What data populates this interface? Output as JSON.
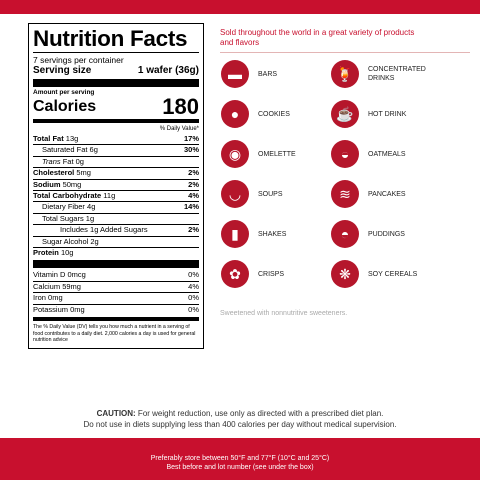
{
  "nutrition": {
    "title": "Nutrition Facts",
    "servings": "7 servings per container",
    "serving_size_label": "Serving size",
    "serving_size_value": "1 wafer (36g)",
    "amount_per_serving": "Amount per serving",
    "calories_label": "Calories",
    "calories_value": "180",
    "dv_header": "% Daily Value*",
    "rows": [
      {
        "name": "Total Fat",
        "amount": "13g",
        "dv": "17%",
        "bold": true,
        "indent": 0
      },
      {
        "name": "Saturated Fat",
        "amount": "6g",
        "dv": "30%",
        "bold": false,
        "indent": 1
      },
      {
        "name": "Trans",
        "amount": "Fat 0g",
        "dv": "",
        "bold": false,
        "indent": 1,
        "italic": true
      },
      {
        "name": "Cholesterol",
        "amount": "5mg",
        "dv": "2%",
        "bold": true,
        "indent": 0
      },
      {
        "name": "Sodium",
        "amount": "50mg",
        "dv": "2%",
        "bold": true,
        "indent": 0
      },
      {
        "name": "Total Carbohydrate",
        "amount": "11g",
        "dv": "4%",
        "bold": true,
        "indent": 0
      },
      {
        "name": "Dietary Fiber",
        "amount": "4g",
        "dv": "14%",
        "bold": false,
        "indent": 1
      },
      {
        "name": "Total Sugars",
        "amount": "1g",
        "dv": "",
        "bold": false,
        "indent": 1
      },
      {
        "name": "Includes 1g Added Sugars",
        "amount": "",
        "dv": "2%",
        "bold": false,
        "indent": 3
      },
      {
        "name": "Sugar Alcohol",
        "amount": "2g",
        "dv": "",
        "bold": false,
        "indent": 1
      },
      {
        "name": "Protein",
        "amount": "10g",
        "dv": "",
        "bold": true,
        "indent": 0
      }
    ],
    "vitamins": [
      {
        "name": "Vitamin D",
        "amount": "0mcg",
        "dv": "0%"
      },
      {
        "name": "Calcium",
        "amount": "59mg",
        "dv": "4%"
      },
      {
        "name": "Iron",
        "amount": "0mg",
        "dv": "0%"
      },
      {
        "name": "Potassium",
        "amount": "0mg",
        "dv": "0%"
      }
    ],
    "footnote": "The % Daily Value (DV) tells you how much a nutrient in a serving of food contributes to a daily diet. 2,000 calories a day is used for general nutrition advice"
  },
  "products": {
    "heading": "Sold throughout the world in a great variety of products and flavors",
    "items": [
      {
        "label": "BARS",
        "icon": "bar-icon",
        "glyph": "▬"
      },
      {
        "label": "CONCENTRATED DRINKS",
        "icon": "drink-icon",
        "glyph": "🍹"
      },
      {
        "label": "COOKIES",
        "icon": "cookie-icon",
        "glyph": "●"
      },
      {
        "label": "HOT DRINK",
        "icon": "mug-icon",
        "glyph": "☕"
      },
      {
        "label": "OMELETTE",
        "icon": "egg-icon",
        "glyph": "◉"
      },
      {
        "label": "OATMEALS",
        "icon": "bowl-icon",
        "glyph": "◒"
      },
      {
        "label": "SOUPS",
        "icon": "soup-icon",
        "glyph": "◡"
      },
      {
        "label": "PANCAKES",
        "icon": "pancake-icon",
        "glyph": "≋"
      },
      {
        "label": "SHAKES",
        "icon": "shaker-icon",
        "glyph": "▮"
      },
      {
        "label": "PUDDINGS",
        "icon": "pudding-icon",
        "glyph": "◓"
      },
      {
        "label": "CRISPS",
        "icon": "crisps-icon",
        "glyph": "✿"
      },
      {
        "label": "SOY CEREALS",
        "icon": "cereal-icon",
        "glyph": "❋"
      }
    ],
    "sweetened_note": "Sweetened with nonnutritive sweeteners."
  },
  "caution": {
    "bold": "CAUTION:",
    "line1": " For weight reduction, use only as directed with a prescribed diet plan.",
    "line2": "Do not use in diets supplying less than 400 calories per day without medical supervision."
  },
  "storage": {
    "line1": "Preferably store between 50°F and 77°F (10°C and 25°C)",
    "line2": "Best before and lot number (see under the box)"
  },
  "colors": {
    "brand": "#c8102e",
    "icon_bg": "#b5162b"
  }
}
